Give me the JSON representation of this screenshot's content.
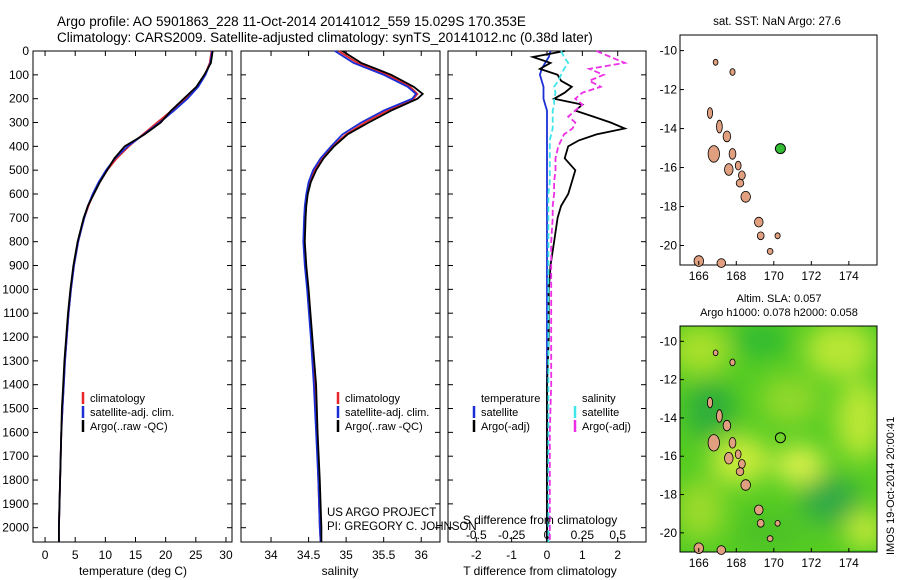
{
  "header": {
    "line1": "Argo profile: AO 5901863_228 11-Oct-2014 20141012_559 15.029S 170.353E",
    "line2": "Climatology: CARS2009. Satellite-adjusted climatology: synTS_20141012.nc (0.38d later)"
  },
  "credits": {
    "project": "US ARGO PROJECT",
    "pi": "PI: GREGORY C. JOHNSON"
  },
  "side_text": "IMOS 19-Oct-2014 20:00:41",
  "colors": {
    "climatology": "#e8262a",
    "satellite": "#1a2fd6",
    "argo": "#000000",
    "sat_salinity": "#3ee6ea",
    "argo_salinity": "#ee2ee6",
    "land": "#e0a080",
    "argo_marker": "#33bb33"
  },
  "chart_data": [
    {
      "type": "line",
      "id": "temperature",
      "xlabel": "temperature (deg C)",
      "xlim": [
        -2,
        31
      ],
      "xticks": [
        0,
        5,
        10,
        15,
        20,
        25,
        30
      ],
      "ylim": [
        0,
        2060
      ],
      "yticks": [
        0,
        100,
        200,
        300,
        400,
        500,
        600,
        700,
        800,
        900,
        1000,
        1100,
        1200,
        1300,
        1400,
        1500,
        1600,
        1700,
        1800,
        1900,
        2000
      ],
      "legend": [
        "climatology",
        "satellite-adj. clim.",
        "Argo(..raw -QC)"
      ],
      "depth": [
        0,
        50,
        100,
        150,
        200,
        250,
        300,
        350,
        400,
        450,
        500,
        550,
        600,
        650,
        700,
        750,
        800,
        900,
        1000,
        1100,
        1200,
        1300,
        1400,
        1500,
        1600,
        1700,
        1800,
        1900,
        2000,
        2060
      ],
      "series": [
        {
          "name": "climatology",
          "values": [
            27.6,
            27.3,
            26.5,
            25.2,
            23.3,
            21.0,
            18.6,
            16.2,
            13.9,
            11.9,
            10.3,
            9.0,
            8.0,
            7.2,
            6.5,
            6.0,
            5.5,
            4.8,
            4.3,
            3.9,
            3.6,
            3.3,
            3.1,
            2.9,
            2.7,
            2.6,
            2.5,
            2.4,
            2.3,
            2.3
          ]
        },
        {
          "name": "satellite-adj. clim.",
          "values": [
            27.7,
            27.4,
            26.6,
            25.4,
            23.6,
            21.4,
            19.0,
            16.4,
            13.7,
            11.6,
            10.1,
            8.9,
            7.9,
            7.1,
            6.5,
            6.0,
            5.5,
            4.8,
            4.3,
            3.9,
            3.6,
            3.3,
            3.1,
            2.9,
            2.7,
            2.6,
            2.5,
            2.4,
            2.3,
            2.3
          ]
        },
        {
          "name": "Argo(..raw -QC)",
          "values": [
            27.8,
            27.5,
            26.4,
            25.1,
            23.0,
            20.9,
            19.2,
            16.5,
            13.2,
            11.5,
            10.3,
            9.1,
            8.1,
            7.1,
            6.4,
            5.9,
            5.4,
            4.7,
            4.2,
            3.8,
            3.5,
            3.2,
            3.0,
            2.8,
            2.7,
            2.6,
            2.5,
            2.4,
            2.3,
            2.3
          ]
        }
      ]
    },
    {
      "type": "line",
      "id": "salinity",
      "xlabel": "salinity",
      "xlim": [
        33.6,
        36.25
      ],
      "xticks": [
        34,
        34.5,
        35,
        35.5,
        36
      ],
      "xticklabels": [
        "34",
        "34.5",
        "35",
        "35.5",
        "36"
      ],
      "ylim": [
        0,
        2060
      ],
      "legend": [
        "climatology",
        "satellite-adj. clim.",
        "Argo(..raw -QC)"
      ],
      "depth": [
        0,
        50,
        100,
        150,
        180,
        200,
        250,
        300,
        350,
        400,
        450,
        500,
        550,
        600,
        650,
        700,
        800,
        900,
        1000,
        1200,
        1400,
        1600,
        1800,
        2000,
        2060
      ],
      "series": [
        {
          "name": "climatology",
          "values": [
            34.9,
            35.15,
            35.55,
            35.85,
            35.95,
            35.9,
            35.55,
            35.25,
            35.0,
            34.82,
            34.68,
            34.58,
            34.52,
            34.48,
            34.46,
            34.45,
            34.44,
            34.46,
            34.49,
            34.54,
            34.58,
            34.61,
            34.63,
            34.65,
            34.66
          ]
        },
        {
          "name": "satellite-adj. clim.",
          "values": [
            34.85,
            35.1,
            35.5,
            35.82,
            35.93,
            35.88,
            35.5,
            35.2,
            34.95,
            34.8,
            34.66,
            34.56,
            34.5,
            34.47,
            34.45,
            34.44,
            34.43,
            34.45,
            34.48,
            34.53,
            34.57,
            34.6,
            34.63,
            34.65,
            34.66
          ]
        },
        {
          "name": "Argo(..raw -QC)",
          "values": [
            34.95,
            35.2,
            35.6,
            35.9,
            36.02,
            35.95,
            35.6,
            35.3,
            35.02,
            34.84,
            34.7,
            34.6,
            34.53,
            34.49,
            34.47,
            34.46,
            34.45,
            34.47,
            34.5,
            34.55,
            34.6,
            34.62,
            34.65,
            34.67,
            34.67
          ]
        }
      ]
    },
    {
      "type": "line",
      "id": "difference",
      "xlabel": "T difference from climatology",
      "xlabel_top": "S difference from climatology",
      "xlim": [
        -2.8,
        2.8
      ],
      "xticks": [
        -2,
        -1,
        0,
        1,
        2
      ],
      "xticks_s": [
        -0.5,
        -0.25,
        0,
        0.25,
        0.5
      ],
      "xticklabels_s": [
        "-0.5",
        "-0.25",
        "0",
        "0.25",
        "0.5"
      ],
      "ylim": [
        0,
        2060
      ],
      "legend_temperature_title": "temperature",
      "legend_salinity_title": "salinity",
      "legend": [
        "satellite",
        "Argo(-adj)",
        "satellite",
        "Argo(-adj)"
      ],
      "depth": [
        0,
        25,
        50,
        75,
        100,
        125,
        150,
        175,
        200,
        225,
        250,
        275,
        300,
        325,
        350,
        375,
        400,
        450,
        500,
        550,
        600,
        650,
        700,
        800,
        900,
        1000,
        1200,
        1400,
        1600,
        1800,
        2000,
        2060
      ],
      "series": [
        {
          "name": "satellite",
          "values": [
            0.1,
            0.05,
            -0.05,
            -0.15,
            -0.2,
            -0.15,
            -0.1,
            -0.1,
            -0.1,
            -0.05,
            0,
            0,
            0,
            0,
            0,
            0,
            0,
            0,
            0,
            0,
            0,
            0,
            0,
            0,
            0,
            0,
            0,
            0,
            0,
            0,
            0,
            0
          ]
        },
        {
          "name": "Argo(-adj)",
          "values": [
            0.5,
            -0.4,
            0.1,
            -0.2,
            0.3,
            0.4,
            0.7,
            0.5,
            0.2,
            1.0,
            0.8,
            1.3,
            1.8,
            2.2,
            1.4,
            0.9,
            0.6,
            0.5,
            0.8,
            0.7,
            0.6,
            0.4,
            0.3,
            0.2,
            0.1,
            0.05,
            0.05,
            0.0,
            0.0,
            0.0,
            0.0,
            0.0
          ]
        },
        {
          "name": "satellite",
          "values": [
            0.1,
            0.12,
            0.15,
            0.12,
            0.1,
            0.08,
            0.05,
            0.06,
            0.05,
            0.05,
            0.04,
            0.04,
            0.04,
            0.04,
            0.03,
            0.02,
            0.02,
            0.02,
            0.02,
            0.02,
            0.01,
            0.01,
            0.01,
            0.01,
            0.01,
            0.01,
            0.01,
            0.01,
            0.01,
            0.01,
            0.01,
            0.01
          ]
        },
        {
          "name": "Argo(-adj)",
          "values": [
            0.35,
            0.45,
            0.55,
            0.3,
            0.4,
            0.3,
            0.38,
            0.25,
            0.2,
            0.25,
            0.2,
            0.15,
            0.2,
            0.18,
            0.12,
            0.1,
            0.08,
            0.06,
            0.06,
            0.05,
            0.05,
            0.04,
            0.04,
            0.03,
            0.03,
            0.03,
            0.03,
            0.03,
            0.02,
            0.02,
            0.02,
            0.02
          ]
        }
      ]
    },
    {
      "type": "scatter",
      "id": "sst-map",
      "title": "sat. SST: NaN Argo: 27.6",
      "xlim": [
        165,
        175.5
      ],
      "ylim": [
        -21,
        -9.2
      ],
      "xticks": [
        166,
        168,
        170,
        172,
        174
      ],
      "yticks": [
        -10,
        -12,
        -14,
        -16,
        -18,
        -20
      ],
      "argo_point": {
        "lon": 170.35,
        "lat": -15.03
      }
    },
    {
      "type": "heatmap",
      "id": "sla-map",
      "title_line1": "Altim. SLA: 0.057",
      "title_line2": "Argo h1000: 0.078 h2000: 0.058",
      "xlim": [
        165,
        175.5
      ],
      "ylim": [
        -21,
        -9.2
      ],
      "xticks": [
        166,
        168,
        170,
        172,
        174
      ],
      "yticks": [
        -10,
        -12,
        -14,
        -16,
        -18,
        -20
      ],
      "argo_point": {
        "lon": 170.35,
        "lat": -15.03
      }
    }
  ]
}
